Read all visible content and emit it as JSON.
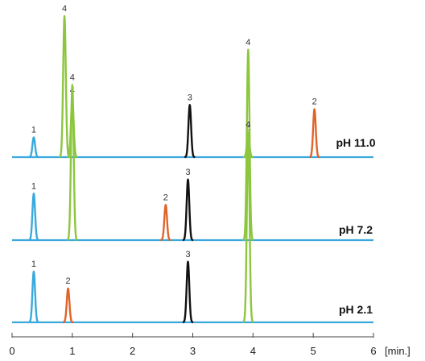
{
  "chart_data": {
    "type": "line",
    "title": "",
    "xlabel": "[min.]",
    "ylabel": "",
    "xlim": [
      0,
      6
    ],
    "x_ticks": [
      "0",
      "1",
      "2",
      "3",
      "4",
      "5",
      "6"
    ],
    "grid": false,
    "legend": "none",
    "peak_colors": {
      "1": "#3aa9dd",
      "2": "#e0642a",
      "3": "#111111",
      "4": "#8cc63f"
    },
    "traces": [
      {
        "label": "pH 11.0",
        "peaks": [
          {
            "id": "1",
            "time": 0.36,
            "height": 0.14
          },
          {
            "id": "4",
            "time": 0.87,
            "height": 1.0
          },
          {
            "id": "4",
            "time": 1.0,
            "height": 0.42
          },
          {
            "id": "3",
            "time": 2.95,
            "height": 0.37
          },
          {
            "id": "4",
            "time": 3.92,
            "height": 0.15
          },
          {
            "id": "2",
            "time": 5.02,
            "height": 0.34
          }
        ]
      },
      {
        "label": "pH 7.2",
        "peaks": [
          {
            "id": "1",
            "time": 0.36,
            "height": 0.33
          },
          {
            "id": "4",
            "time": 1.0,
            "height": 1.1
          },
          {
            "id": "2",
            "time": 2.55,
            "height": 0.25
          },
          {
            "id": "3",
            "time": 2.92,
            "height": 0.43
          },
          {
            "id": "4",
            "time": 3.92,
            "height": 1.35
          }
        ]
      },
      {
        "label": "pH 2.1",
        "peaks": [
          {
            "id": "1",
            "time": 0.36,
            "height": 0.36
          },
          {
            "id": "2",
            "time": 0.93,
            "height": 0.24
          },
          {
            "id": "3",
            "time": 2.92,
            "height": 0.43
          },
          {
            "id": "4",
            "time": 3.92,
            "height": 1.35
          }
        ]
      }
    ]
  }
}
